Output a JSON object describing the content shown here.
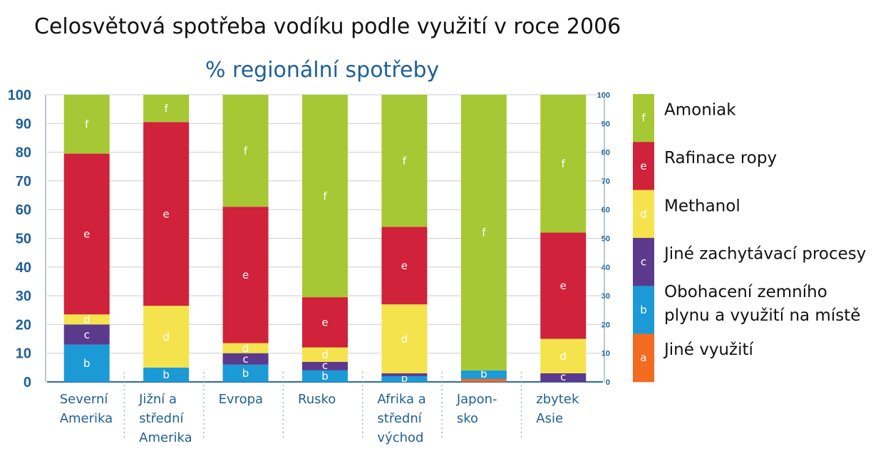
{
  "chart_data": {
    "type": "bar",
    "stacked": true,
    "title": "Celosvětová spotřeba vodíku podle využití v roce 2006",
    "subtitle": "% regionální spotřeby",
    "ylim": [
      0,
      100
    ],
    "yticks": [
      0,
      10,
      20,
      30,
      40,
      50,
      60,
      70,
      80,
      90,
      100
    ],
    "grid": true,
    "categories": [
      [
        "Severní",
        "Amerika"
      ],
      [
        "Jižní a",
        "střední",
        "Amerika"
      ],
      [
        "Evropa"
      ],
      [
        "Rusko"
      ],
      [
        "Afrika a",
        "střední",
        "východ"
      ],
      [
        "Japon-",
        "sko"
      ],
      [
        "zbytek",
        "Asie"
      ]
    ],
    "series": [
      {
        "key": "a",
        "name": "Jiné využití",
        "color": "#f26b21",
        "values": [
          0,
          0,
          0,
          0,
          0,
          1,
          0
        ]
      },
      {
        "key": "b",
        "name": "Obohacení zemního plynu a využití na místě",
        "color": "#1b9ad6",
        "values": [
          13,
          5,
          6,
          4,
          2,
          3,
          0
        ]
      },
      {
        "key": "c",
        "name": "Jiné zachytávací procesy",
        "color": "#5b3a8e",
        "values": [
          7,
          0,
          4,
          3,
          1,
          0,
          3
        ]
      },
      {
        "key": "d",
        "name": "Methanol",
        "color": "#f4e34c",
        "values": [
          3.5,
          21.5,
          3.5,
          5,
          24,
          0,
          12
        ]
      },
      {
        "key": "e",
        "name": "Rafinace ropy",
        "color": "#d0223a",
        "values": [
          56,
          64,
          47.5,
          17.5,
          27,
          0,
          37
        ]
      },
      {
        "key": "f",
        "name": "Amoniak",
        "color": "#a6c834",
        "values": [
          20.5,
          9.5,
          39,
          70.5,
          46,
          96,
          48
        ]
      }
    ],
    "legend": [
      {
        "key": "f",
        "lines": [
          "Amoniak"
        ]
      },
      {
        "key": "e",
        "lines": [
          "Rafinace ropy"
        ]
      },
      {
        "key": "d",
        "lines": [
          "Methanol"
        ]
      },
      {
        "key": "c",
        "lines": [
          "Jiné zachytávací procesy"
        ]
      },
      {
        "key": "b",
        "lines": [
          "Obohacení zemního",
          "plynu a využití na místě"
        ]
      },
      {
        "key": "a",
        "lines": [
          "Jiné využití"
        ]
      }
    ]
  }
}
